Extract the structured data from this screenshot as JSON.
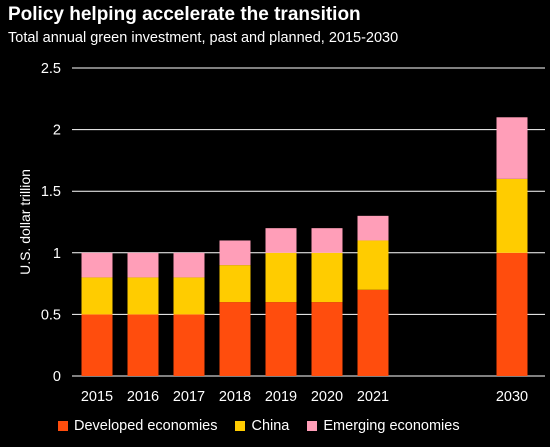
{
  "header": {
    "title": "Policy helping accelerate the transition",
    "subtitle": "Total annual green investment, past and planned, 2015-2030"
  },
  "chart_data": {
    "type": "bar",
    "stacked": true,
    "title": "Policy helping accelerate the transition",
    "subtitle": "Total annual green investment, past and planned, 2015-2030",
    "xlabel": "",
    "ylabel": "U.S. dollar trillion",
    "ylim": [
      0,
      2.5
    ],
    "yticks": [
      0,
      0.5,
      1,
      1.5,
      2,
      2.5
    ],
    "ytick_labels": [
      "0",
      "0.5",
      "1",
      "1.5",
      "2",
      "2.5"
    ],
    "grid": "horizontal",
    "legend_position": "bottom",
    "categories": [
      "2015",
      "2016",
      "2017",
      "2018",
      "2019",
      "2020",
      "2021",
      "2030"
    ],
    "series": [
      {
        "name": "Developed economies",
        "color": "#ff4d0d",
        "values": [
          0.5,
          0.5,
          0.5,
          0.6,
          0.6,
          0.6,
          0.7,
          1.0
        ]
      },
      {
        "name": "China",
        "color": "#ffcc00",
        "values": [
          0.3,
          0.3,
          0.3,
          0.3,
          0.4,
          0.4,
          0.4,
          0.6
        ]
      },
      {
        "name": "Emerging economies",
        "color": "#ff9eb8",
        "values": [
          0.2,
          0.2,
          0.2,
          0.2,
          0.2,
          0.2,
          0.2,
          0.5
        ]
      }
    ]
  }
}
